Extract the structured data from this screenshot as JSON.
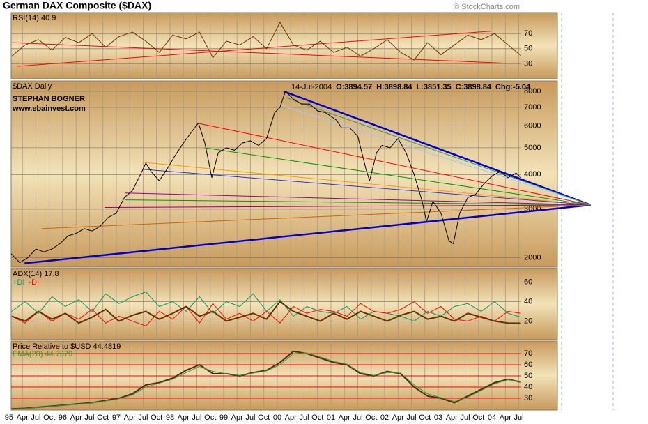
{
  "header": {
    "title": "German DAX Composite ($DAX)",
    "credit": "© StockCharts.com"
  },
  "chart_data": [
    {
      "type": "line",
      "title": "RSI(14) 40.9",
      "x": [
        1995.05,
        1995.3,
        1995.55,
        1995.8,
        1996.05,
        1996.3,
        1996.55,
        1996.8,
        1997.05,
        1997.3,
        1997.55,
        1997.8,
        1998.05,
        1998.3,
        1998.55,
        1998.8,
        1999.05,
        1999.3,
        1999.55,
        1999.8,
        2000.05,
        2000.3,
        2000.55,
        2000.8,
        2001.05,
        2001.3,
        2001.55,
        2001.8,
        2002.05,
        2002.3,
        2002.55,
        2002.8,
        2003.05,
        2003.3,
        2003.55,
        2003.8,
        2004.05,
        2004.3,
        2004.54
      ],
      "series": [
        {
          "color": "#663300",
          "values": [
            40,
            55,
            62,
            48,
            65,
            58,
            70,
            52,
            66,
            72,
            60,
            45,
            68,
            63,
            72,
            38,
            60,
            55,
            66,
            50,
            85,
            55,
            48,
            60,
            45,
            52,
            40,
            50,
            62,
            45,
            35,
            58,
            42,
            55,
            68,
            62,
            70,
            55,
            40.9
          ]
        }
      ],
      "trend_lines": [
        {
          "color": "#ff0000",
          "x": [
            1995.16,
            2003.99
          ],
          "values": [
            26.7,
            73.3
          ]
        },
        {
          "color": "#ff0000",
          "x": [
            1995.05,
            2004.18
          ],
          "values": [
            58,
            31
          ]
        }
      ],
      "xlim": [
        1995.04,
        2004.545
      ],
      "ylim": [
        10,
        98
      ],
      "yticks": [
        30,
        50,
        70
      ],
      "grid": true
    },
    {
      "type": "line",
      "title": "$DAX Daily",
      "annotations": [
        "STEPHAN BOGNER",
        "www.ebainvest.com"
      ],
      "quote": [
        "14-Jul-2004",
        "O:3894.57",
        "H:3898.84",
        "L:3851.35",
        "C:3898.84",
        "Chg:-5.04"
      ],
      "log_scale": true,
      "x": [
        1995.04,
        1995.2,
        1995.35,
        1995.5,
        1995.65,
        1995.8,
        1995.95,
        1996.1,
        1996.25,
        1996.4,
        1996.55,
        1996.7,
        1996.85,
        1997.0,
        1997.15,
        1997.3,
        1997.45,
        1997.55,
        1997.65,
        1997.8,
        1997.95,
        1998.1,
        1998.25,
        1998.4,
        1998.53,
        1998.65,
        1998.78,
        1998.9,
        1999.05,
        1999.2,
        1999.35,
        1999.5,
        1999.65,
        1999.8,
        1999.95,
        2000.05,
        2000.15,
        2000.3,
        2000.45,
        2000.6,
        2000.75,
        2000.9,
        2001.0,
        2001.1,
        2001.2,
        2001.35,
        2001.5,
        2001.65,
        2001.72,
        2001.85,
        2001.95,
        2002.1,
        2002.25,
        2002.4,
        2002.55,
        2002.7,
        2002.78,
        2002.9,
        2003.05,
        2003.2,
        2003.28,
        2003.4,
        2003.55,
        2003.7,
        2003.85,
        2004.0,
        2004.15,
        2004.3,
        2004.45,
        2004.54
      ],
      "series": [
        {
          "color": "#000000",
          "values": [
            2070,
            1920,
            2000,
            2150,
            2100,
            2150,
            2250,
            2400,
            2450,
            2550,
            2500,
            2600,
            2800,
            2900,
            3300,
            3500,
            4000,
            4400,
            4100,
            3800,
            4200,
            4700,
            5200,
            5700,
            6150,
            5200,
            3900,
            4800,
            5000,
            4900,
            5200,
            5300,
            5100,
            5400,
            6700,
            7000,
            8000,
            7500,
            7200,
            7200,
            6800,
            6700,
            6500,
            6300,
            5900,
            5900,
            5500,
            4200,
            3800,
            4800,
            5100,
            5000,
            5400,
            4800,
            4000,
            3200,
            2700,
            3200,
            2900,
            2300,
            2250,
            2900,
            3300,
            3400,
            3700,
            3950,
            4100,
            3900,
            4050,
            3898.84
          ]
        }
      ],
      "trend_lines": [
        {
          "color": "#0000cc",
          "width": 2.5,
          "x": [
            2000.12,
            2005.84
          ],
          "values": [
            8000,
            3105
          ]
        },
        {
          "color": "#0000cc",
          "width": 2.5,
          "x": [
            1995.29,
            2005.84
          ],
          "values": [
            1910,
            3105
          ]
        },
        {
          "color": "#ff0000",
          "x": [
            1998.53,
            2005.84
          ],
          "values": [
            6130,
            3105
          ]
        },
        {
          "color": "#009900",
          "x": [
            1998.64,
            2005.84
          ],
          "values": [
            5000,
            3105
          ]
        },
        {
          "color": "#ff9900",
          "x": [
            1997.49,
            2005.84
          ],
          "values": [
            4430,
            3105
          ]
        },
        {
          "color": "#3333cc",
          "x": [
            1997.49,
            2005.84
          ],
          "values": [
            4180,
            3105
          ]
        },
        {
          "color": "#990099",
          "x": [
            1997.17,
            2005.84
          ],
          "values": [
            3430,
            3105
          ]
        },
        {
          "color": "#009900",
          "x": [
            1997.17,
            2005.84
          ],
          "values": [
            3240,
            3105
          ]
        },
        {
          "color": "#990066",
          "x": [
            1996.78,
            2005.84
          ],
          "values": [
            3040,
            3105
          ]
        },
        {
          "color": "#cc6600",
          "x": [
            1995.61,
            2005.84
          ],
          "values": [
            2550,
            3105
          ]
        },
        {
          "color": "#99ccff",
          "x": [
            2000.03,
            2005.84
          ],
          "values": [
            7170,
            3105
          ]
        },
        {
          "color": "#339966",
          "x": [
            2000.16,
            2005.84
          ],
          "values": [
            7590,
            3105
          ]
        }
      ],
      "xlim": [
        1995.04,
        2004.545
      ],
      "ylim": [
        1850,
        8730
      ],
      "yticks": [
        2000,
        3000,
        4000,
        5000,
        6000,
        7000,
        8000
      ],
      "grid": true
    },
    {
      "type": "line",
      "title": "ADX(14) 17.8",
      "x": [
        1995.05,
        1995.3,
        1995.55,
        1995.8,
        1996.05,
        1996.3,
        1996.55,
        1996.8,
        1997.05,
        1997.3,
        1997.55,
        1997.8,
        1998.05,
        1998.3,
        1998.55,
        1998.8,
        1999.05,
        1999.3,
        1999.55,
        1999.8,
        2000.05,
        2000.3,
        2000.55,
        2000.8,
        2001.05,
        2001.3,
        2001.55,
        2001.8,
        2002.05,
        2002.3,
        2002.55,
        2002.8,
        2003.05,
        2003.3,
        2003.55,
        2003.8,
        2004.05,
        2004.3,
        2004.54
      ],
      "series": [
        {
          "name": "+DI",
          "color": "#009966",
          "values": [
            30,
            40,
            28,
            45,
            35,
            42,
            30,
            48,
            38,
            45,
            50,
            35,
            40,
            30,
            45,
            28,
            40,
            35,
            48,
            30,
            42,
            25,
            35,
            30,
            28,
            35,
            22,
            30,
            28,
            25,
            20,
            30,
            25,
            35,
            38,
            30,
            40,
            28,
            24
          ]
        },
        {
          "name": "-DI",
          "color": "#ff0000",
          "values": [
            25,
            18,
            30,
            20,
            28,
            22,
            32,
            18,
            25,
            20,
            15,
            30,
            22,
            35,
            18,
            38,
            22,
            28,
            20,
            30,
            18,
            35,
            28,
            32,
            30,
            25,
            38,
            30,
            28,
            32,
            40,
            28,
            35,
            22,
            20,
            25,
            20,
            30,
            28
          ]
        },
        {
          "color": "#663300",
          "width": 2,
          "values": [
            25,
            20,
            30,
            22,
            28,
            18,
            24,
            32,
            20,
            26,
            30,
            22,
            28,
            35,
            25,
            30,
            20,
            24,
            28,
            22,
            40,
            30,
            25,
            20,
            28,
            22,
            30,
            25,
            20,
            26,
            30,
            22,
            25,
            20,
            28,
            24,
            20,
            18,
            17.8
          ]
        }
      ],
      "xlim": [
        1995.04,
        2004.545
      ],
      "ylim": [
        1,
        74
      ],
      "yticks": [
        20,
        40,
        60
      ],
      "grid": true
    },
    {
      "type": "line",
      "x": [
        1995.05,
        1995.3,
        1995.55,
        1995.8,
        1996.05,
        1996.3,
        1996.55,
        1996.8,
        1997.05,
        1997.3,
        1997.55,
        1997.8,
        1998.05,
        1998.3,
        1998.55,
        1998.8,
        1999.05,
        1999.3,
        1999.55,
        1999.8,
        2000.05,
        2000.3,
        2000.55,
        2000.8,
        2001.05,
        2001.3,
        2001.55,
        2001.8,
        2002.05,
        2002.3,
        2002.55,
        2002.8,
        2003.05,
        2003.3,
        2003.55,
        2003.8,
        2004.05,
        2004.3,
        2004.54
      ],
      "series": [
        {
          "name": "Price Relative to $USD  44.4819",
          "color": "#4d2e14",
          "width": 2,
          "values": [
            20.5,
            21,
            22,
            23,
            24,
            25,
            26,
            28,
            30,
            34,
            42,
            44,
            48,
            55,
            60,
            52,
            52,
            50,
            53,
            55,
            62,
            72,
            70,
            66,
            62,
            60,
            52,
            50,
            54,
            52,
            40,
            32,
            30,
            26,
            32,
            38,
            44,
            47,
            44.4819
          ]
        },
        {
          "name": "EMA(20) 44.7679",
          "color": "#339933",
          "values": [
            20.3,
            20.8,
            21.8,
            22.8,
            23.8,
            24.8,
            25.8,
            27.5,
            29.5,
            33,
            40,
            43.5,
            47,
            53,
            58.5,
            54,
            52,
            50.5,
            52.5,
            54.5,
            60,
            70,
            70.5,
            67,
            63,
            60.5,
            53,
            50.5,
            53,
            52.5,
            42,
            34,
            30.5,
            27,
            31,
            37,
            43,
            46.5,
            44.77
          ]
        }
      ],
      "xlim": [
        1995.04,
        2004.545
      ],
      "ylim": [
        19.4,
        81.25
      ],
      "yticks": [
        30,
        40,
        50,
        60,
        70
      ],
      "grid": true,
      "grid_color": "#ff0000",
      "xticks": [
        {
          "value": 1995,
          "label": "95"
        },
        {
          "value": 1995.25,
          "label": "Apr"
        },
        {
          "value": 1995.5,
          "label": "Jul"
        },
        {
          "value": 1995.75,
          "label": "Oct"
        },
        {
          "value": 1996,
          "label": "96"
        },
        {
          "value": 1996.25,
          "label": "Apr"
        },
        {
          "value": 1996.5,
          "label": "Jul"
        },
        {
          "value": 1996.75,
          "label": "Oct"
        },
        {
          "value": 1997,
          "label": "97"
        },
        {
          "value": 1997.25,
          "label": "Apr"
        },
        {
          "value": 1997.5,
          "label": "Jul"
        },
        {
          "value": 1997.75,
          "label": "Oct"
        },
        {
          "value": 1998,
          "label": "98"
        },
        {
          "value": 1998.25,
          "label": "Apr"
        },
        {
          "value": 1998.5,
          "label": "Jul"
        },
        {
          "value": 1998.75,
          "label": "Oct"
        },
        {
          "value": 1999,
          "label": "99"
        },
        {
          "value": 1999.25,
          "label": "Apr"
        },
        {
          "value": 1999.5,
          "label": "Jul"
        },
        {
          "value": 1999.75,
          "label": "Oct"
        },
        {
          "value": 2000,
          "label": "00"
        },
        {
          "value": 2000.25,
          "label": "Apr"
        },
        {
          "value": 2000.5,
          "label": "Jul"
        },
        {
          "value": 2000.75,
          "label": "Oct"
        },
        {
          "value": 2001,
          "label": "01"
        },
        {
          "value": 2001.25,
          "label": "Apr"
        },
        {
          "value": 2001.5,
          "label": "Jul"
        },
        {
          "value": 2001.75,
          "label": "Oct"
        },
        {
          "value": 2002,
          "label": "02"
        },
        {
          "value": 2002.25,
          "label": "Apr"
        },
        {
          "value": 2002.5,
          "label": "Jul"
        },
        {
          "value": 2002.75,
          "label": "Oct"
        },
        {
          "value": 2003,
          "label": "03"
        },
        {
          "value": 2003.25,
          "label": "Apr"
        },
        {
          "value": 2003.5,
          "label": "Jul"
        },
        {
          "value": 2003.75,
          "label": "Oct"
        },
        {
          "value": 2004,
          "label": "04"
        },
        {
          "value": 2004.25,
          "label": "Apr"
        },
        {
          "value": 2004.5,
          "label": "Jul"
        }
      ]
    }
  ]
}
